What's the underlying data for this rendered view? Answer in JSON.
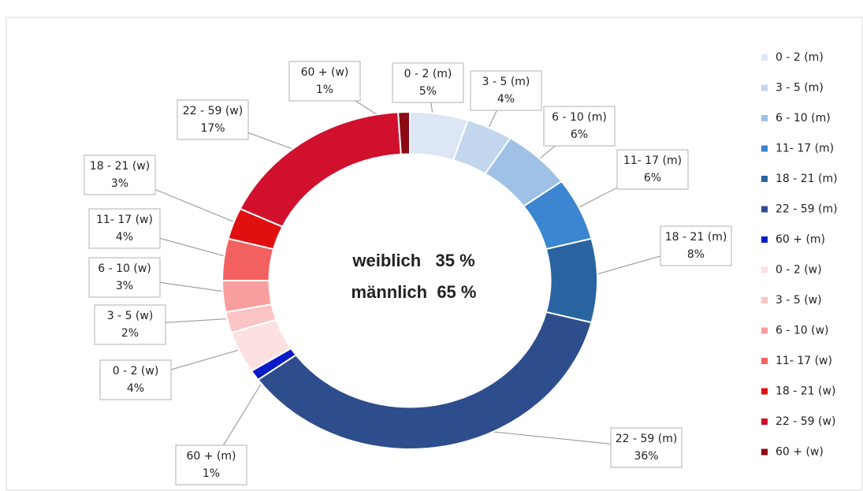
{
  "chart_data": {
    "type": "donut",
    "categories": [
      "0 - 2 (m)",
      "3 - 5 (m)",
      "6 - 10 (m)",
      "11- 17 (m)",
      "18 - 21 (m)",
      "22 - 59 (m)",
      "60 + (m)",
      "0 - 2 (w)",
      "3 - 5 (w)",
      "6 - 10 (w)",
      "11- 17 (w)",
      "18 - 21 (w)",
      "22 - 59 (w)",
      "60 + (w)"
    ],
    "values": [
      5,
      4,
      6,
      6,
      8,
      36,
      1,
      4,
      2,
      3,
      4,
      3,
      17,
      1
    ],
    "value_labels": [
      "5%",
      "4%",
      "6%",
      "6%",
      "8%",
      "36%",
      "1%",
      "4%",
      "2%",
      "3%",
      "4%",
      "3%",
      "17%",
      "1%"
    ],
    "colors": [
      "#dce6f4",
      "#c2d6ee",
      "#9fc1e6",
      "#3c85d0",
      "#2a64a0",
      "#2e4d8c",
      "#0a1cc8",
      "#fde0e0",
      "#fcc4c4",
      "#f99e9e",
      "#f36060",
      "#e01010",
      "#d0102c",
      "#8c0a14"
    ],
    "annotations": [
      "weiblich   35 %",
      "männlich  65 %"
    ],
    "legend": "right"
  }
}
